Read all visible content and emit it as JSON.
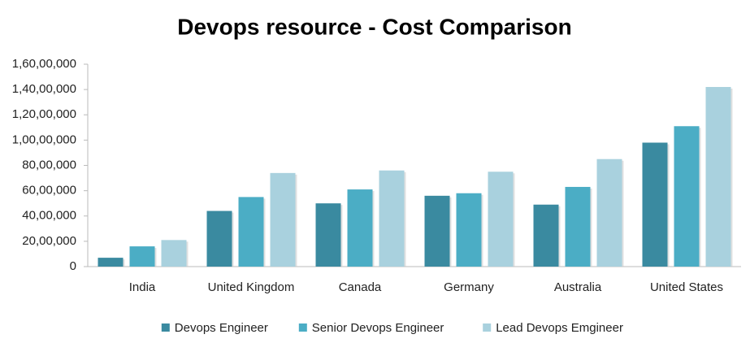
{
  "chart_data": {
    "type": "bar",
    "title": "Devops resource - Cost Comparison",
    "categories": [
      "India",
      "United Kingdom",
      "Canada",
      "Germany",
      "Australia",
      "United States"
    ],
    "series": [
      {
        "name": "Devops Engineer",
        "color": "#3a8aa0",
        "values": [
          700000,
          4400000,
          5000000,
          5600000,
          4900000,
          9800000
        ]
      },
      {
        "name": "Senior Devops Engineer",
        "color": "#4badc5",
        "values": [
          1600000,
          5500000,
          6100000,
          5800000,
          6300000,
          11100000
        ]
      },
      {
        "name": "Lead Devops Emgineer",
        "color": "#a9d1de",
        "values": [
          2100000,
          7400000,
          7600000,
          7500000,
          8500000,
          14200000
        ]
      }
    ],
    "ylim": [
      0,
      16000000
    ],
    "yticks": [
      0,
      {
        "value": 2000000,
        "label": "20,00,000"
      },
      {
        "value": 4000000,
        "label": "40,00,000"
      },
      {
        "value": 6000000,
        "label": "60,00,000"
      },
      {
        "value": 8000000,
        "label": "80,00,000"
      },
      {
        "value": 10000000,
        "label": "1,00,00,000"
      },
      {
        "value": 12000000,
        "label": "1,20,00,000"
      },
      {
        "value": 14000000,
        "label": "1,40,00,000"
      },
      {
        "value": 16000000,
        "label": "1,60,00,000"
      }
    ],
    "grid": false,
    "legend": "bottom"
  }
}
